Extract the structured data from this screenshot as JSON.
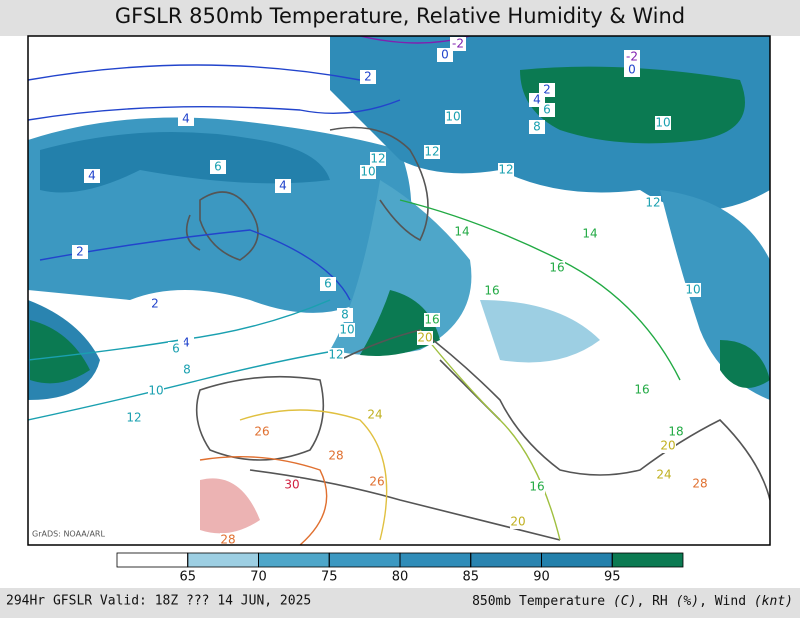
{
  "header": {
    "title": "GFSLR 850mb Temperature, Relative Humidity & Wind"
  },
  "map": {
    "credit": "GrADS: NOAA/ARL",
    "contour_labels": [
      "-2",
      "0",
      "-2",
      "0",
      "2",
      "4",
      "4",
      "6",
      "4",
      "2",
      "2",
      "4",
      "6",
      "8",
      "10",
      "12",
      "2",
      "4",
      "6",
      "8",
      "10",
      "12",
      "10",
      "12",
      "12",
      "12",
      "14",
      "14",
      "16",
      "10",
      "6",
      "8",
      "10",
      "12",
      "16",
      "16",
      "20",
      "24",
      "26",
      "28",
      "30",
      "26",
      "16",
      "18",
      "20",
      "24",
      "28",
      "16",
      "20",
      "28",
      "10"
    ]
  },
  "colorbar": {
    "ticks": [
      65,
      70,
      75,
      80,
      85,
      90,
      95
    ],
    "colors": [
      "#ffffff",
      "#9dcfe3",
      "#4ea6c9",
      "#3c98c1",
      "#2f8cb8",
      "#2a84b0",
      "#2380ab",
      "#0b7a52"
    ]
  },
  "footer": {
    "left": "294Hr GFSLR Valid: 18Z ??? 14 JUN, 2025",
    "right": [
      {
        "text": "850mb Temperature ",
        "italic": false
      },
      {
        "text": "(C)",
        "italic": true
      },
      {
        "text": ", RH ",
        "italic": false
      },
      {
        "text": "(%)",
        "italic": true
      },
      {
        "text": ", Wind ",
        "italic": false
      },
      {
        "text": "(knt)",
        "italic": true
      }
    ]
  }
}
